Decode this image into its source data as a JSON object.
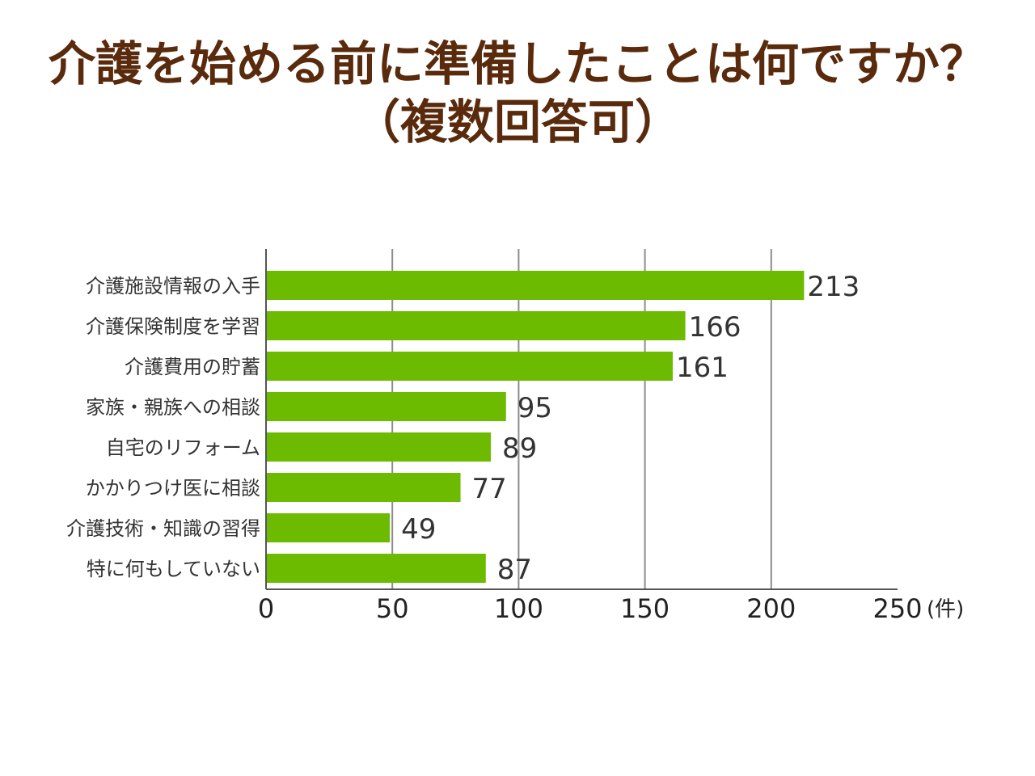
{
  "title": {
    "line1": "介護を始める前に準備したことは何ですか？",
    "line2": "（複数回答可）"
  },
  "chart_data": {
    "type": "bar",
    "orientation": "horizontal",
    "categories": [
      "介護施設情報の入手",
      "介護保険制度を学習",
      "介護費用の貯蓄",
      "家族・親族への相談",
      "自宅のリフォーム",
      "かかりつけ医に相談",
      "介護技術・知識の習得",
      "特に何もしていない"
    ],
    "values": [
      213,
      166,
      161,
      95,
      89,
      77,
      49,
      87
    ],
    "xlim": [
      0,
      250
    ],
    "xticks": [
      0,
      50,
      100,
      150,
      200,
      250
    ],
    "x_unit": "(件)",
    "grid": true,
    "bar_color": "#6cbb00",
    "data_labels": true
  }
}
